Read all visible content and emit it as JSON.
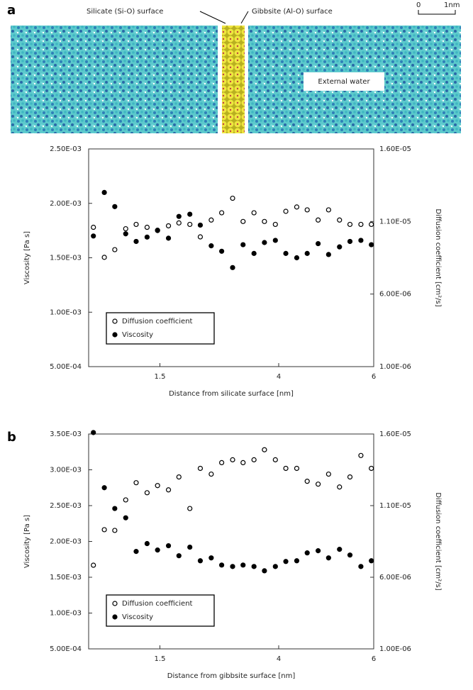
{
  "simulation": {
    "left_label": "Silicate (Si-O) surface",
    "right_label": "Gibbsite (Al-O) surface",
    "scale_start": "0",
    "scale_end": "1nm",
    "water_label": "External water"
  },
  "chart_data": [
    {
      "type": "scatter",
      "panel": "a",
      "xlabel": "Distance from silicate surface [nm]",
      "ylabel": "Viscosity [Pa s]",
      "y2label": "Diffusion coefficient [cm²/s]",
      "x": [
        0.1,
        0.33,
        0.55,
        0.78,
        1.0,
        1.23,
        1.45,
        1.68,
        1.9,
        2.13,
        2.35,
        2.58,
        2.8,
        3.03,
        3.25,
        3.48,
        3.7,
        3.93,
        4.15,
        4.38,
        4.6,
        4.83,
        5.05,
        5.28,
        5.5,
        5.73,
        5.95
      ],
      "xlim": [
        0,
        6
      ],
      "xticks": [
        1.5,
        4,
        6
      ],
      "ylim": [
        0.0005,
        0.0025
      ],
      "yticks": [
        {
          "value": 0.0005,
          "label": "5.00E-04"
        },
        {
          "value": 0.001,
          "label": "1.00E-03"
        },
        {
          "value": 0.0015,
          "label": "1.50E-03"
        },
        {
          "value": 0.002,
          "label": "2.00E-03"
        },
        {
          "value": 0.0025,
          "label": "2.50E-03"
        }
      ],
      "y2lim": [
        1e-06,
        1.6e-05
      ],
      "y2ticks": [
        {
          "value": 1e-06,
          "label": "1.00E-06"
        },
        {
          "value": 6e-06,
          "label": "6.00E-06"
        },
        {
          "value": 1.1e-05,
          "label": "1.10E-05"
        },
        {
          "value": 1.6e-05,
          "label": "1.60E-05"
        }
      ],
      "series": [
        {
          "name": "Diffusion coefficient",
          "marker": "open",
          "color": "#000000",
          "axis": "y2",
          "values": [
            1.06e-05,
            8.53e-06,
            9.06e-06,
            1.05e-05,
            1.08e-05,
            1.06e-05,
            1.04e-05,
            1.07e-05,
            1.09e-05,
            1.08e-05,
            9.94e-06,
            1.11e-05,
            1.16e-05,
            1.26e-05,
            1.1e-05,
            1.16e-05,
            1.1e-05,
            1.08e-05,
            1.17e-05,
            1.2e-05,
            1.18e-05,
            1.11e-05,
            1.18e-05,
            1.11e-05,
            1.08e-05,
            1.08e-05,
            1.08e-05
          ]
        },
        {
          "name": "Viscosity",
          "marker": "filled",
          "color": "#000000",
          "values": [
            0.0017,
            0.0021,
            0.00197,
            0.00172,
            0.00165,
            0.00169,
            0.00175,
            0.00168,
            0.00188,
            0.0019,
            0.0018,
            0.00161,
            0.00156,
            0.00141,
            0.00162,
            0.00154,
            0.00164,
            0.00166,
            0.00154,
            0.0015,
            0.00154,
            0.00163,
            0.00153,
            0.0016,
            0.00165,
            0.00166,
            0.00162
          ]
        }
      ]
    },
    {
      "type": "scatter",
      "panel": "b",
      "xlabel": "Distance from gibbsite surface [nm]",
      "ylabel": "Viscosity [Pa s]",
      "y2label": "Diffusion coefficient [cm²/s]",
      "x": [
        0.1,
        0.33,
        0.55,
        0.78,
        1.0,
        1.23,
        1.45,
        1.68,
        1.9,
        2.13,
        2.35,
        2.58,
        2.8,
        3.03,
        3.25,
        3.48,
        3.7,
        3.93,
        4.15,
        4.38,
        4.6,
        4.83,
        5.05,
        5.28,
        5.5,
        5.73,
        5.95
      ],
      "xlim": [
        0,
        6
      ],
      "xticks": [
        1.5,
        4,
        6
      ],
      "ylim": [
        0.0005,
        0.0035
      ],
      "yticks": [
        {
          "value": 0.0005,
          "label": "5.00E-04"
        },
        {
          "value": 0.001,
          "label": "1.00E-03"
        },
        {
          "value": 0.0015,
          "label": "1.50E-03"
        },
        {
          "value": 0.002,
          "label": "2.00E-03"
        },
        {
          "value": 0.0025,
          "label": "2.50E-03"
        },
        {
          "value": 0.003,
          "label": "3.00E-03"
        },
        {
          "value": 0.0035,
          "label": "3.50E-03"
        }
      ],
      "y2lim": [
        1e-06,
        1.6e-05
      ],
      "y2ticks": [
        {
          "value": 1e-06,
          "label": "1.00E-06"
        },
        {
          "value": 6e-06,
          "label": "6.00E-06"
        },
        {
          "value": 1.1e-05,
          "label": "1.10E-05"
        },
        {
          "value": 1.6e-05,
          "label": "1.60E-05"
        }
      ],
      "series": [
        {
          "name": "Diffusion coefficient",
          "marker": "open",
          "color": "#000000",
          "axis": "y2",
          "values": [
            6.84e-06,
            9.32e-06,
            9.27e-06,
            1.14e-05,
            1.26e-05,
            1.19e-05,
            1.24e-05,
            1.21e-05,
            1.3e-05,
            1.08e-05,
            1.36e-05,
            1.32e-05,
            1.4e-05,
            1.42e-05,
            1.4e-05,
            1.42e-05,
            1.49e-05,
            1.42e-05,
            1.36e-05,
            1.36e-05,
            1.27e-05,
            1.25e-05,
            1.32e-05,
            1.23e-05,
            1.3e-05,
            1.45e-05,
            1.36e-05
          ]
        },
        {
          "name": "Viscosity",
          "marker": "filled",
          "color": "#000000",
          "values": [
            0.00352,
            0.00275,
            0.00246,
            0.00233,
            0.00186,
            0.00197,
            0.00188,
            0.00194,
            0.0018,
            0.00192,
            0.00173,
            0.00177,
            0.00167,
            0.00165,
            0.00167,
            0.00165,
            0.00159,
            0.00165,
            0.00172,
            0.00173,
            0.00184,
            0.00187,
            0.00177,
            0.00189,
            0.00181,
            0.00165,
            0.00173
          ]
        }
      ]
    }
  ]
}
